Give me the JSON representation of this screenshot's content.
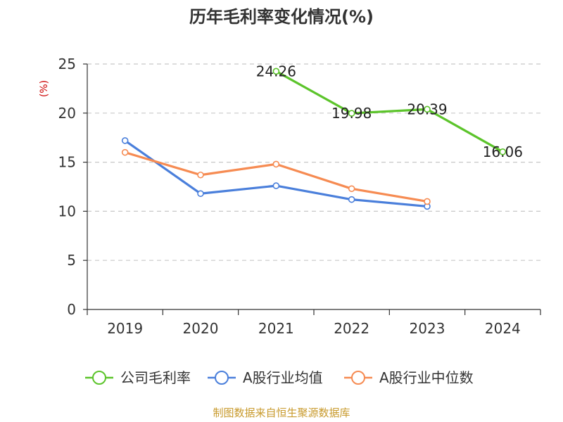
{
  "chart_data": {
    "type": "line",
    "title": "历年毛利率变化情况(%)",
    "ylabel": "(%)",
    "xlabel": "",
    "categories": [
      "2019",
      "2020",
      "2021",
      "2022",
      "2023",
      "2024"
    ],
    "ylim": [
      0,
      25
    ],
    "yticks": [
      0,
      5,
      10,
      15,
      20,
      25
    ],
    "grid": true,
    "legend_position": "bottom",
    "series": [
      {
        "name": "公司毛利率",
        "color": "#5cc42b",
        "values": [
          null,
          null,
          24.26,
          19.98,
          20.39,
          16.06
        ],
        "labels": [
          null,
          null,
          "24.26",
          "19.98",
          "20.39",
          "16.06"
        ]
      },
      {
        "name": "A股行业均值",
        "color": "#4a7fdb",
        "values": [
          17.2,
          11.8,
          12.6,
          11.2,
          10.5,
          null
        ],
        "labels": null
      },
      {
        "name": "A股行业中位数",
        "color": "#f68b52",
        "values": [
          16.0,
          13.7,
          14.8,
          12.3,
          11.0,
          null
        ],
        "labels": null
      }
    ]
  },
  "source": "制图数据来自恒生聚源数据库"
}
